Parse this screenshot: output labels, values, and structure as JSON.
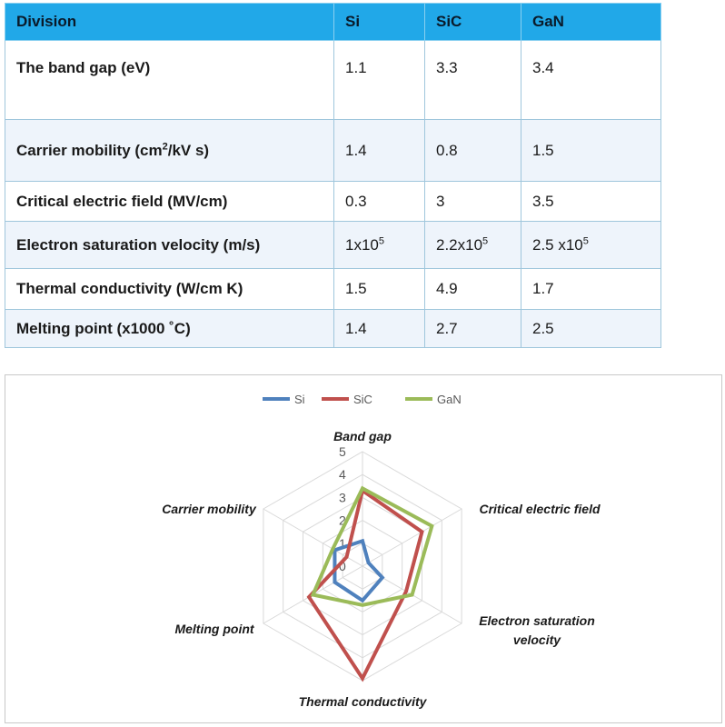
{
  "table": {
    "headers": [
      "Division",
      "Si",
      "SiC",
      "GaN"
    ],
    "rows": [
      {
        "param": "The band gap (eV)",
        "si": "1.1",
        "sic": "3.3",
        "gan": "3.4"
      },
      {
        "param_base": "Carrier mobility (cm",
        "param_sup": "2",
        "param_tail": "/kV s)",
        "si": "1.4",
        "sic": "0.8",
        "gan": "1.5"
      },
      {
        "param": "Critical electric field (MV/cm)",
        "si": "0.3",
        "sic": "3",
        "gan": "3.5"
      },
      {
        "param": "Electron saturation velocity (m/s)",
        "si_base": "1x10",
        "si_sup": "5",
        "sic_base": "2.2x10",
        "sic_sup": "5",
        "gan_base": "2.5 x10",
        "gan_sup": "5"
      },
      {
        "param": "Thermal conductivity (W/cm K)",
        "si": "1.5",
        "sic": "4.9",
        "gan": "1.7"
      },
      {
        "param": "Melting point (x1000 ˚C)",
        "si": "1.4",
        "sic": "2.7",
        "gan": "2.5"
      }
    ]
  },
  "chart_data": {
    "type": "radar",
    "axes": [
      "Band gap",
      "Critical electric field",
      "Electron saturation velocity",
      "Thermal conductivity",
      "Melting point",
      "Carrier mobility"
    ],
    "axis_label_lines": [
      [
        "Band gap"
      ],
      [
        "Critical electric field"
      ],
      [
        "Electron saturation",
        "velocity"
      ],
      [
        "Thermal conductivity"
      ],
      [
        "Melting point"
      ],
      [
        "Carrier mobility"
      ]
    ],
    "ticks": [
      "0",
      "1",
      "2",
      "3",
      "4",
      "5"
    ],
    "rmax": 5,
    "grid": true,
    "legend_position": "top",
    "series": [
      {
        "name": "Si",
        "color": "#4f81bd",
        "values": [
          1.1,
          0.3,
          1,
          1.5,
          1.4,
          1.4
        ]
      },
      {
        "name": "SiC",
        "color": "#c0504d",
        "values": [
          3.3,
          3,
          2.2,
          4.9,
          2.7,
          0.8
        ]
      },
      {
        "name": "GaN",
        "color": "#9bbb59",
        "values": [
          3.4,
          3.5,
          2.5,
          1.7,
          2.5,
          1.5
        ]
      }
    ]
  }
}
